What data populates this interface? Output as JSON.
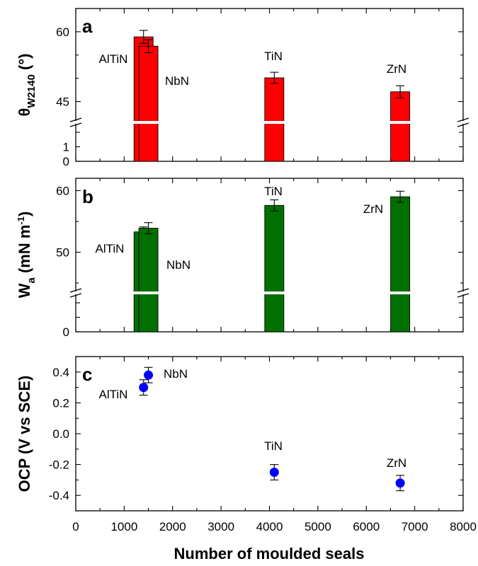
{
  "figure": {
    "xlabel": "Number of moulded seals",
    "x_ticks": [
      "0",
      "1000",
      "2000",
      "3000",
      "4000",
      "5000",
      "6000",
      "7000",
      "8000"
    ]
  },
  "chart_data": [
    {
      "panel": "a",
      "type": "bar",
      "ylabel_main": "θ",
      "ylabel_sub": "W2140",
      "ylabel_unit": " (°)",
      "xlim": [
        0,
        8000
      ],
      "y_axis_break": true,
      "upper_ylim": [
        42.5,
        65
      ],
      "upper_ticks": [
        "45",
        "60"
      ],
      "lower_ylim": [
        0,
        2
      ],
      "lower_ticks": [
        "0",
        "1"
      ],
      "bar_color": "#ff0000",
      "bars": [
        {
          "label": "AlTiN",
          "x": 1400,
          "value": 58.9,
          "error": 1.4
        },
        {
          "label": "NbN",
          "x": 1500,
          "value": 56.9,
          "error": 1.4
        },
        {
          "label": "TiN",
          "x": 4100,
          "value": 50.1,
          "error": 1.2
        },
        {
          "label": "ZrN",
          "x": 6700,
          "value": 47.1,
          "error": 1.3
        }
      ]
    },
    {
      "panel": "b",
      "type": "bar",
      "ylabel_main": "W",
      "ylabel_sub": "a",
      "ylabel_unit": " (mN m",
      "ylabel_sup": "-1",
      "ylabel_close": ")",
      "xlim": [
        0,
        8000
      ],
      "y_axis_break": true,
      "upper_ylim": [
        45,
        62
      ],
      "upper_ticks": [
        "50",
        "60"
      ],
      "lower_ylim": [
        0,
        2
      ],
      "lower_ticks": [
        "0"
      ],
      "bar_color": "#007000",
      "bars": [
        {
          "label": "AlTiN",
          "x": 1400,
          "value": 53.3,
          "error": 0.8
        },
        {
          "label": "NbN",
          "x": 1500,
          "value": 53.9,
          "error": 0.9
        },
        {
          "label": "TiN",
          "x": 4100,
          "value": 57.6,
          "error": 0.9
        },
        {
          "label": "ZrN",
          "x": 6700,
          "value": 59.0,
          "error": 0.9
        }
      ]
    },
    {
      "panel": "c",
      "type": "scatter",
      "ylabel": "OCP (V vs SCE)",
      "xlim": [
        0,
        8000
      ],
      "ylim": [
        -0.5,
        0.5
      ],
      "y_ticks": [
        "-0.4",
        "-0.2",
        "0.0",
        "0.2",
        "0.4"
      ],
      "marker_color": "#0000ff",
      "points": [
        {
          "label": "AlTiN",
          "x": 1400,
          "y": 0.3,
          "error": 0.05
        },
        {
          "label": "NbN",
          "x": 1500,
          "y": 0.38,
          "error": 0.05
        },
        {
          "label": "TiN",
          "x": 4100,
          "y": -0.25,
          "error": 0.05
        },
        {
          "label": "ZrN",
          "x": 6700,
          "y": -0.32,
          "error": 0.05
        }
      ]
    }
  ]
}
